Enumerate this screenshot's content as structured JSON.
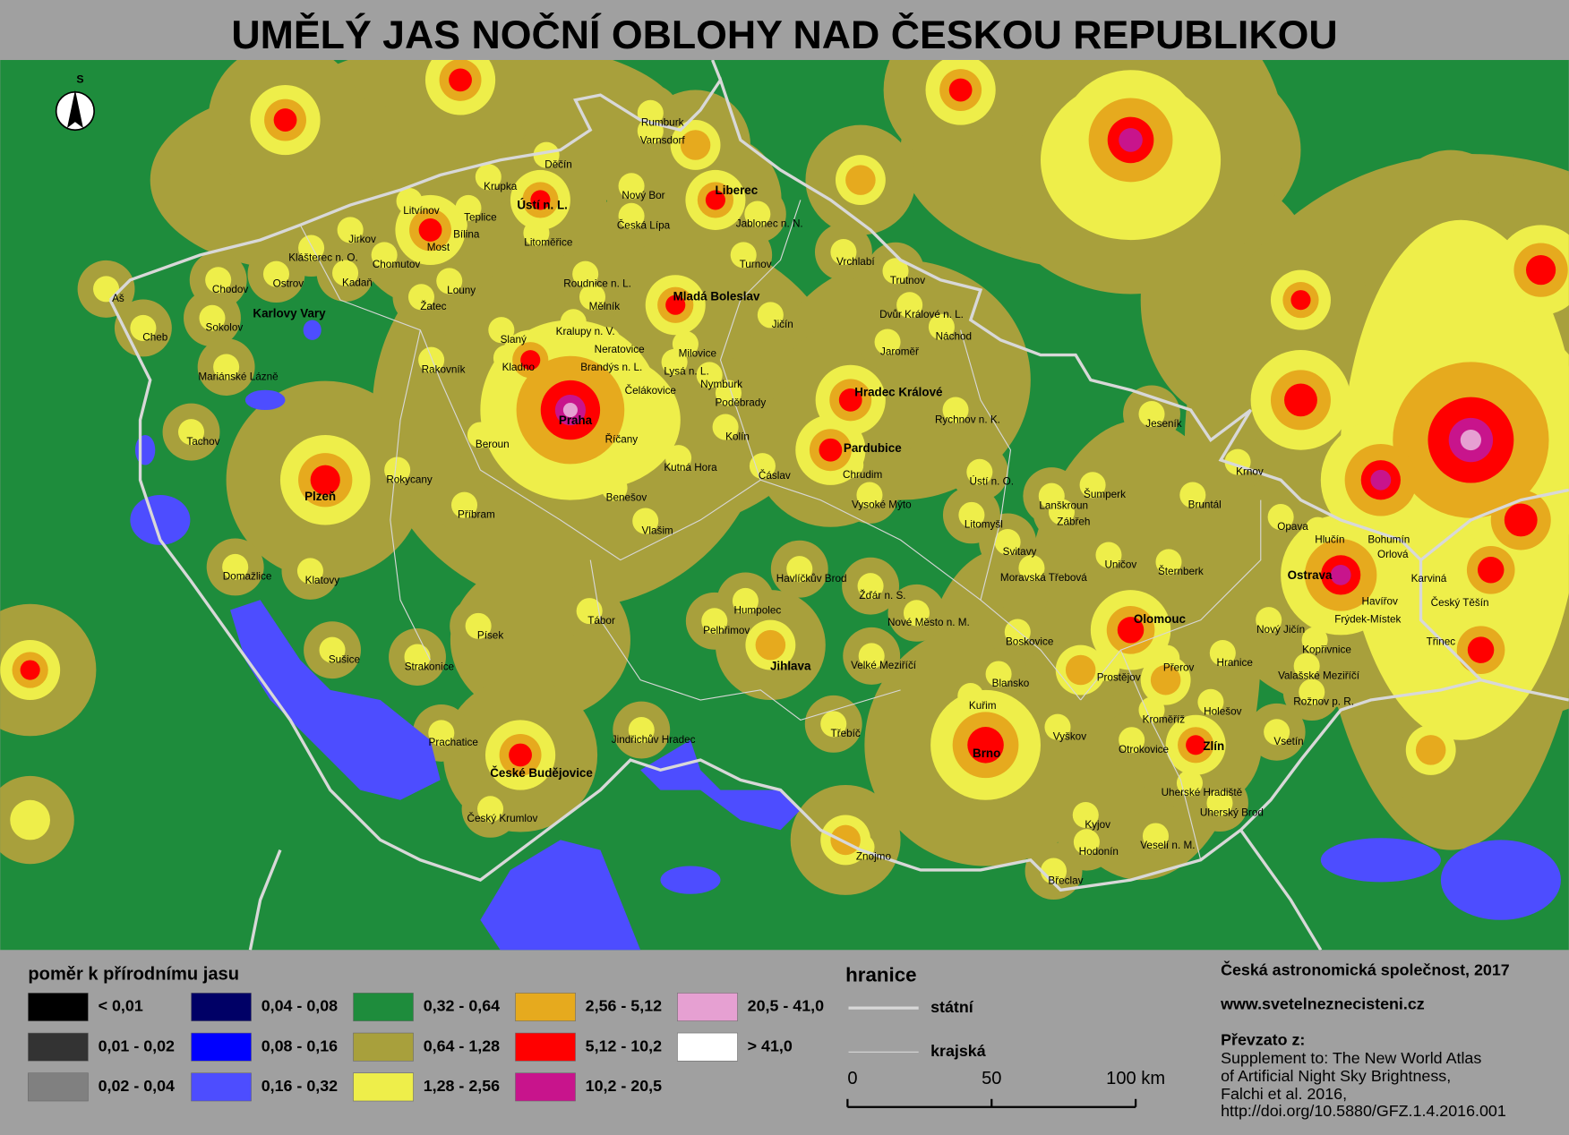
{
  "title": "UMĚLÝ JAS NOČNÍ OBLOHY NAD ČESKOU REPUBLIKOU",
  "north_label": "S",
  "map": {
    "major_cities": [
      "Ústí n. L.",
      "Liberec",
      "Mladá Boleslav",
      "Praha",
      "Hradec Králové",
      "Pardubice",
      "Plzeň",
      "Karlovy Vary",
      "Olomouc",
      "Ostrava",
      "Jihlava",
      "České Budějovice",
      "Brno",
      "Zlín"
    ],
    "cities": [
      "Rumburk",
      "Varnsdorf",
      "Děčín",
      "Krupka",
      "Litvínov",
      "Teplice",
      "Bílina",
      "Most",
      "Jirkov",
      "Klášterec n. O.",
      "Chomutov",
      "Kadaň",
      "Ostrov",
      "Chodov",
      "Louny",
      "Žatec",
      "Aš",
      "Sokolov",
      "Cheb",
      "Mariánské Lázně",
      "Tachov",
      "Rakovník",
      "Slaný",
      "Kralupy n. V.",
      "Kladno",
      "Neratovice",
      "Brandýs n. L.",
      "Milovice",
      "Lysá n. L.",
      "Čelákovice",
      "Nymburk",
      "Poděbrady",
      "Kolín",
      "Říčany",
      "Beroun",
      "Kutná Hora",
      "Čáslav",
      "Benešov",
      "Příbram",
      "Vlašim",
      "Rokycany",
      "Domažlice",
      "Klatovy",
      "Sušice",
      "Strakonice",
      "Písek",
      "Tábor",
      "Prachatice",
      "Český Krumlov",
      "Jindřichův Hradec",
      "Pelhřimov",
      "Humpolec",
      "Havlíčkův Brod",
      "Žďár n. S.",
      "Nové Město n. M.",
      "Velké Meziříčí",
      "Třebíč",
      "Znojmo",
      "Kuřim",
      "Blansko",
      "Boskovice",
      "Vyškov",
      "Břeclav",
      "Hodonín",
      "Kyjov",
      "Veselí n. M.",
      "Uherský Brod",
      "Uherské Hradiště",
      "Otrokovice",
      "Kroměříž",
      "Přerov",
      "Prostějov",
      "Holešov",
      "Hranice",
      "Vsetín",
      "Valašské Meziříčí",
      "Rožnov p. R.",
      "Kopřivnice",
      "Nový Jičín",
      "Frýdek-Místek",
      "Havířov",
      "Třinec",
      "Český Těšín",
      "Karviná",
      "Orlová",
      "Bohumín",
      "Hlučín",
      "Opava",
      "Krnov",
      "Bruntál",
      "Šternberk",
      "Uničov",
      "Šumperk",
      "Jeseník",
      "Zábřeh",
      "Lanškroun",
      "Moravská Třebová",
      "Svitavy",
      "Litomyšl",
      "Ústí n. O.",
      "Vysoké Mýto",
      "Chrudim",
      "Rychnov n. K.",
      "Náchod",
      "Jaroměř",
      "Dvůr Králové n. L.",
      "Trutnov",
      "Vrchlabí",
      "Jičín",
      "Turnov",
      "Jablonec n. N.",
      "Česká Lípa",
      "Nový Bor",
      "Litoměřice",
      "Roudnice n. L.",
      "Mělník"
    ]
  },
  "legend": {
    "title": "poměr k přírodnímu jasu",
    "items": [
      {
        "label": "< 0,01",
        "color": "#000000"
      },
      {
        "label": "0,01 - 0,02",
        "color": "#333333"
      },
      {
        "label": "0,02 - 0,04",
        "color": "#808080"
      },
      {
        "label": "0,04 - 0,08",
        "color": "#000066"
      },
      {
        "label": "0,08 - 0,16",
        "color": "#0000ff"
      },
      {
        "label": "0,16 - 0,32",
        "color": "#4d4dff"
      },
      {
        "label": "0,32 - 0,64",
        "color": "#1e8c3c"
      },
      {
        "label": "0,64 - 1,28",
        "color": "#a8a03c"
      },
      {
        "label": "1,28 - 2,56",
        "color": "#eeee4a"
      },
      {
        "label": "2,56 - 5,12",
        "color": "#e6aa1e"
      },
      {
        "label": "5,12 - 10,2",
        "color": "#ff0000"
      },
      {
        "label": "10,2 - 20,5",
        "color": "#c8148c"
      },
      {
        "label": "20,5 - 41,0",
        "color": "#e6a0d2"
      },
      {
        "label": "> 41,0",
        "color": "#ffffff"
      }
    ]
  },
  "borders": {
    "title": "hranice",
    "items": [
      "státní",
      "krajská"
    ]
  },
  "scale": {
    "ticks": [
      0,
      50,
      {
        "value": 100,
        "label": "100 km"
      }
    ]
  },
  "credits": {
    "author": "Česká astronomická společnost, 2017",
    "web": "www.svetelneznecisteni.cz",
    "source_title": "Převzato z:",
    "source_lines": [
      "Supplement to: The New World Atlas",
      "of Artificial Night Sky Brightness,",
      "Falchi et al. 2016,",
      "http://doi.org/10.5880/GFZ.1.4.2016.001"
    ]
  }
}
